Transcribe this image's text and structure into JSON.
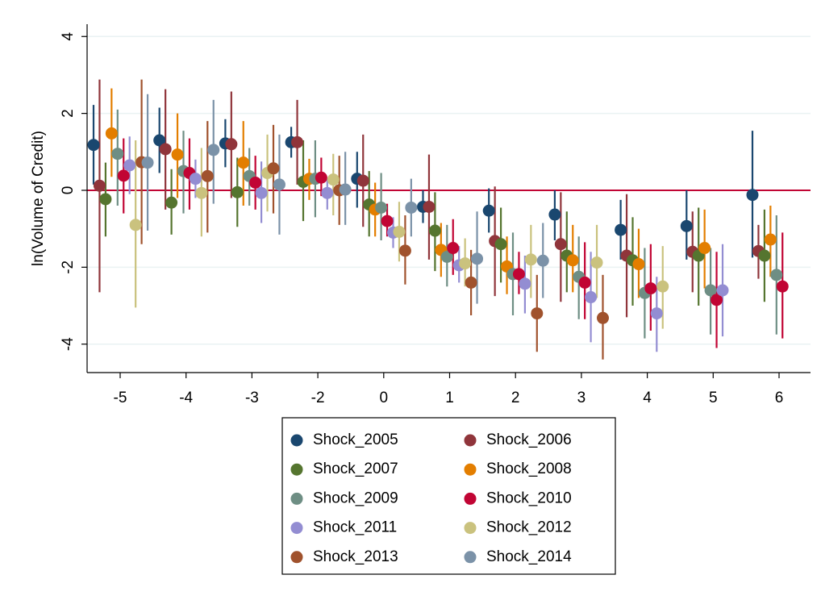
{
  "chart_data": {
    "type": "coefplot",
    "y_label": "ln(Volume of Credit)",
    "categories": [
      "-5",
      "-4",
      "-3",
      "-2",
      "0",
      "1",
      "2",
      "3",
      "4",
      "5",
      "6"
    ],
    "ylim": [
      -4.74,
      4.32
    ],
    "yticks": [
      -4,
      -2,
      0,
      2,
      4
    ],
    "grid": true,
    "refline": 0,
    "refline_color": "#c10534",
    "series": [
      {
        "name": "Shock_2005",
        "color": "#1a476f",
        "values": [
          1.18,
          1.3,
          1.22,
          1.25,
          0.3,
          -0.43,
          -0.53,
          -0.63,
          -1.03,
          -0.93,
          -0.12
        ],
        "low": [
          0.15,
          0.45,
          0.6,
          0.85,
          -0.45,
          -0.85,
          -1.1,
          -1.3,
          -1.8,
          -1.8,
          -1.75
        ],
        "high": [
          2.22,
          2.15,
          1.85,
          1.65,
          1.0,
          0.0,
          0.05,
          0.0,
          -0.25,
          0.0,
          1.55
        ]
      },
      {
        "name": "Shock_2006",
        "color": "#90353b",
        "values": [
          0.12,
          1.07,
          1.2,
          1.25,
          0.25,
          -0.43,
          -1.32,
          -1.4,
          -1.7,
          -1.6,
          -1.58
        ],
        "low": [
          -2.65,
          -0.5,
          -0.2,
          0.15,
          -0.95,
          -1.8,
          -2.75,
          -2.9,
          -3.3,
          -2.65,
          -2.3
        ],
        "high": [
          2.88,
          2.63,
          2.57,
          2.35,
          1.45,
          0.93,
          0.1,
          -0.05,
          -0.1,
          -0.55,
          -0.9
        ]
      },
      {
        "name": "Shock_2007",
        "color": "#55752f",
        "values": [
          -0.23,
          -0.32,
          -0.05,
          0.22,
          -0.37,
          -1.05,
          -1.4,
          -1.7,
          -1.82,
          -1.7,
          -1.7
        ],
        "low": [
          -1.2,
          -1.15,
          -0.95,
          -0.8,
          -1.2,
          -2.1,
          -2.4,
          -2.65,
          -3.0,
          -3.0,
          -2.9
        ],
        "high": [
          0.72,
          0.55,
          0.85,
          1.3,
          0.5,
          -0.05,
          -0.45,
          -0.55,
          -0.7,
          -0.45,
          -0.5
        ]
      },
      {
        "name": "Shock_2008",
        "color": "#e37e00",
        "values": [
          1.48,
          0.93,
          0.72,
          0.3,
          -0.5,
          -1.55,
          -1.98,
          -1.82,
          -1.92,
          -1.5,
          -1.28
        ],
        "low": [
          0.35,
          -0.2,
          -0.4,
          -0.25,
          -1.2,
          -2.25,
          -2.7,
          -2.65,
          -2.8,
          -2.55,
          -2.25
        ],
        "high": [
          2.65,
          2.0,
          1.8,
          0.82,
          0.2,
          -0.85,
          -1.2,
          -0.9,
          -1.0,
          -0.5,
          -0.4
        ]
      },
      {
        "name": "Shock_2009",
        "color": "#6e8e84",
        "values": [
          0.95,
          0.5,
          0.37,
          0.3,
          -0.45,
          -1.73,
          -2.18,
          -2.25,
          -2.67,
          -2.6,
          -2.2
        ],
        "low": [
          -0.4,
          -0.6,
          -0.4,
          -0.7,
          -1.3,
          -2.5,
          -3.25,
          -3.35,
          -3.85,
          -3.75,
          -3.75
        ],
        "high": [
          2.1,
          1.55,
          1.1,
          1.3,
          0.45,
          -0.9,
          -1.1,
          -1.2,
          -1.5,
          -1.5,
          -0.65
        ]
      },
      {
        "name": "Shock_2010",
        "color": "#c10534",
        "values": [
          0.38,
          0.45,
          0.2,
          0.33,
          -0.8,
          -1.5,
          -2.18,
          -2.4,
          -2.55,
          -2.85,
          -2.5
        ],
        "low": [
          -0.6,
          -0.5,
          -0.5,
          -0.15,
          -1.2,
          -2.2,
          -2.7,
          -3.35,
          -3.65,
          -4.1,
          -3.85
        ],
        "high": [
          1.35,
          1.35,
          0.9,
          0.85,
          -0.35,
          -0.75,
          -1.6,
          -1.35,
          -1.4,
          -1.6,
          -1.1
        ]
      },
      {
        "name": "Shock_2011",
        "color": "#938dd2",
        "values": [
          0.65,
          0.3,
          -0.07,
          -0.07,
          -1.1,
          -1.95,
          -2.43,
          -2.78,
          -3.2,
          -2.6,
          null
        ],
        "low": [
          -0.1,
          -0.2,
          -0.85,
          -0.5,
          -1.5,
          -2.4,
          -3.2,
          -3.95,
          -4.2,
          -3.8,
          null
        ],
        "high": [
          1.4,
          0.8,
          0.75,
          0.3,
          -0.7,
          -1.45,
          -1.7,
          -1.6,
          -2.25,
          -1.4,
          null
        ]
      },
      {
        "name": "Shock_2012",
        "color": "#cac27e",
        "values": [
          -0.9,
          -0.07,
          0.45,
          0.28,
          -1.08,
          -1.9,
          -1.8,
          -1.88,
          -2.5,
          null,
          null
        ],
        "low": [
          -3.05,
          -1.2,
          -0.55,
          -0.65,
          -1.85,
          -2.5,
          -2.8,
          -2.8,
          -3.6,
          null,
          null
        ],
        "high": [
          1.3,
          1.1,
          1.45,
          0.95,
          -0.3,
          -1.25,
          -0.9,
          -0.9,
          -1.45,
          null,
          null
        ]
      },
      {
        "name": "Shock_2013",
        "color": "#a0522d",
        "values": [
          0.73,
          0.37,
          0.57,
          0.0,
          -1.57,
          -2.4,
          -3.2,
          -3.32,
          null,
          null,
          null
        ],
        "low": [
          -1.4,
          -1.1,
          -0.6,
          -0.9,
          -2.45,
          -3.25,
          -4.2,
          -4.4,
          null,
          null,
          null
        ],
        "high": [
          2.88,
          1.8,
          1.7,
          0.9,
          -0.65,
          -1.55,
          -2.2,
          -2.2,
          null,
          null,
          null
        ]
      },
      {
        "name": "Shock_2014",
        "color": "#7b92a8",
        "values": [
          0.72,
          1.05,
          0.15,
          0.02,
          -0.45,
          -1.78,
          -1.83,
          null,
          null,
          null,
          null
        ],
        "low": [
          -1.05,
          -0.35,
          -1.15,
          -0.9,
          -1.2,
          -2.95,
          -2.8,
          null,
          null,
          null,
          null
        ],
        "high": [
          2.5,
          2.35,
          1.45,
          1.0,
          0.3,
          -0.55,
          -0.85,
          null,
          null,
          null,
          null
        ]
      }
    ]
  }
}
